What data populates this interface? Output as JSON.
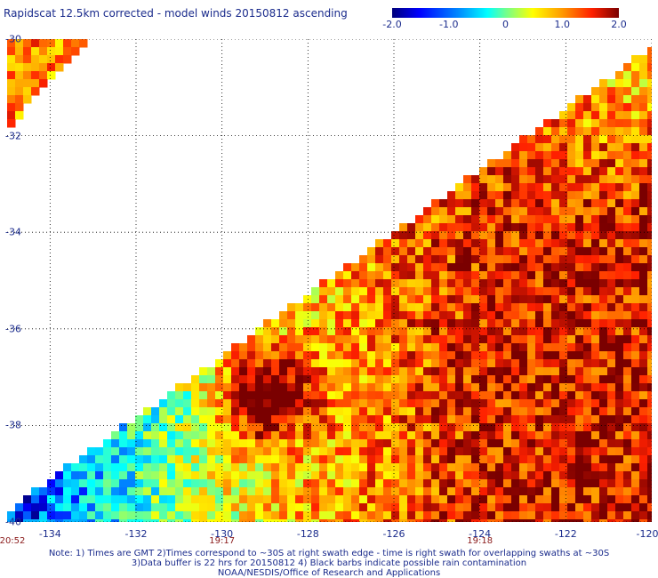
{
  "title": "Rapidscat 12.5km corrected - model winds 20150812 ascending",
  "colorbar": {
    "ticks": [
      {
        "label": "-2.0",
        "value": -2.0
      },
      {
        "label": "-1.0",
        "value": -1.0
      },
      {
        "label": "0",
        "value": 0.0
      },
      {
        "label": "1.0",
        "value": 1.0
      },
      {
        "label": "2.0",
        "value": 2.0
      }
    ],
    "min": -2.0,
    "max": 2.0
  },
  "map": {
    "lon_range": [
      -135,
      -120
    ],
    "lat_range": [
      -40,
      -30
    ],
    "lat_ticks": [
      {
        "label": "-30",
        "value": -30
      },
      {
        "label": "-32",
        "value": -32
      },
      {
        "label": "-34",
        "value": -34
      },
      {
        "label": "-36",
        "value": -36
      },
      {
        "label": "-38",
        "value": -38
      },
      {
        "label": "-40",
        "value": -40
      }
    ],
    "lon_ticks": [
      {
        "label": "-134",
        "value": -134
      },
      {
        "label": "-132",
        "value": -132
      },
      {
        "label": "-130",
        "value": -130
      },
      {
        "label": "-128",
        "value": -128
      },
      {
        "label": "-126",
        "value": -126
      },
      {
        "label": "-124",
        "value": -124
      },
      {
        "label": "-122",
        "value": -122
      },
      {
        "label": "-120",
        "value": -120
      }
    ],
    "time_labels": [
      {
        "label": "20:52",
        "lon": -135
      },
      {
        "label": "19:17",
        "lon": -130
      },
      {
        "label": "19:18",
        "lon": -124
      }
    ],
    "field_stats": {
      "west_region_mean": -1.5,
      "central_region_mean": 0.5,
      "east_region_mean": 1.6
    }
  },
  "notes": {
    "line1": "Note: 1) Times are GMT 2)Times correspond to ~30S at right swath edge - time is right swath for overlapping swaths at ~30S",
    "line2": "3)Data buffer is 22 hrs for 20150812 4) Black barbs indicate possible rain contamination",
    "line3": "NOAA/NESDIS/Office of Research and Applications"
  }
}
